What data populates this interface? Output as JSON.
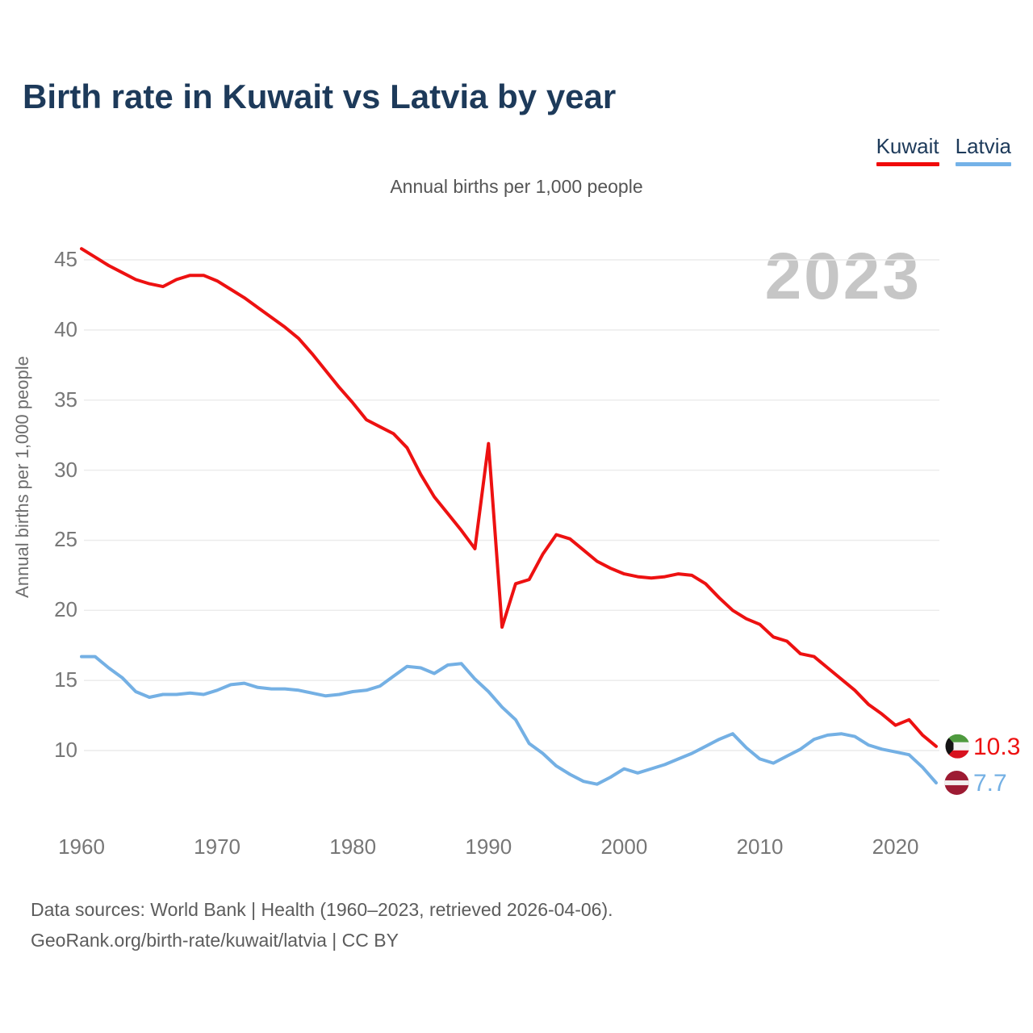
{
  "header": {
    "title": "Birth rate in Kuwait vs Latvia by year"
  },
  "legend": [
    {
      "label": "Kuwait",
      "color": "#f00a0a"
    },
    {
      "label": "Latvia",
      "color": "#74b2e8"
    }
  ],
  "subtitle": "Annual births per 1,000 people",
  "watermark": "2023",
  "y_axis": {
    "label": "Annual births per 1,000 people",
    "ticks": [
      10,
      15,
      20,
      25,
      30,
      35,
      40,
      45
    ]
  },
  "x_axis": {
    "ticks": [
      1960,
      1970,
      1980,
      1990,
      2000,
      2010,
      2020
    ]
  },
  "end_labels": [
    {
      "series": "Kuwait",
      "value": "10.3",
      "flag": "kuwait",
      "color": "#ed1111"
    },
    {
      "series": "Latvia",
      "value": "7.7",
      "flag": "latvia",
      "color": "#74b0e4"
    }
  ],
  "footer": {
    "line1": "Data sources: World Bank | Health (1960–2023, retrieved 2026-04-06).",
    "line2": "GeoRank.org/birth-rate/kuwait/latvia | CC BY"
  },
  "chart_data": {
    "type": "line",
    "title": "Birth rate in Kuwait vs Latvia by year",
    "xlabel": "",
    "ylabel": "Annual births per 1,000 people",
    "xlim": [
      1960,
      2023
    ],
    "ylim": [
      6.5,
      47
    ],
    "grid": true,
    "legend_position": "top-right",
    "x": [
      1960,
      1961,
      1962,
      1963,
      1964,
      1965,
      1966,
      1967,
      1968,
      1969,
      1970,
      1971,
      1972,
      1973,
      1974,
      1975,
      1976,
      1977,
      1978,
      1979,
      1980,
      1981,
      1982,
      1983,
      1984,
      1985,
      1986,
      1987,
      1988,
      1989,
      1990,
      1991,
      1992,
      1993,
      1994,
      1995,
      1996,
      1997,
      1998,
      1999,
      2000,
      2001,
      2002,
      2003,
      2004,
      2005,
      2006,
      2007,
      2008,
      2009,
      2010,
      2011,
      2012,
      2013,
      2014,
      2015,
      2016,
      2017,
      2018,
      2019,
      2020,
      2021,
      2022,
      2023
    ],
    "series": [
      {
        "name": "Kuwait",
        "color": "#ed1111",
        "values": [
          45.8,
          45.2,
          44.6,
          44.1,
          43.6,
          43.3,
          43.1,
          43.6,
          43.9,
          43.9,
          43.5,
          42.9,
          42.3,
          41.6,
          40.9,
          40.2,
          39.4,
          38.3,
          37.1,
          35.9,
          34.8,
          33.6,
          33.1,
          32.6,
          31.6,
          29.7,
          28.1,
          26.9,
          25.7,
          24.4,
          31.9,
          18.8,
          21.9,
          22.2,
          24.0,
          25.4,
          25.1,
          24.3,
          23.5,
          23.0,
          22.6,
          22.4,
          22.3,
          22.4,
          22.6,
          22.5,
          21.9,
          20.9,
          20.0,
          19.4,
          19.0,
          18.1,
          17.8,
          16.9,
          16.7,
          15.9,
          15.1,
          14.3,
          13.3,
          12.6,
          11.8,
          12.2,
          11.1,
          10.3
        ]
      },
      {
        "name": "Latvia",
        "color": "#74b0e4",
        "values": [
          16.7,
          16.7,
          15.9,
          15.2,
          14.2,
          13.8,
          14.0,
          14.0,
          14.1,
          14.0,
          14.3,
          14.7,
          14.8,
          14.5,
          14.4,
          14.4,
          14.3,
          14.1,
          13.9,
          14.0,
          14.2,
          14.3,
          14.6,
          15.3,
          16.0,
          15.9,
          15.5,
          16.1,
          16.2,
          15.1,
          14.2,
          13.1,
          12.2,
          10.5,
          9.8,
          8.9,
          8.3,
          7.8,
          7.6,
          8.1,
          8.7,
          8.4,
          8.7,
          9.0,
          9.4,
          9.8,
          10.3,
          10.8,
          11.2,
          10.2,
          9.4,
          9.1,
          9.6,
          10.1,
          10.8,
          11.1,
          11.2,
          11.0,
          10.4,
          10.1,
          9.9,
          9.7,
          8.8,
          7.7
        ]
      }
    ]
  }
}
